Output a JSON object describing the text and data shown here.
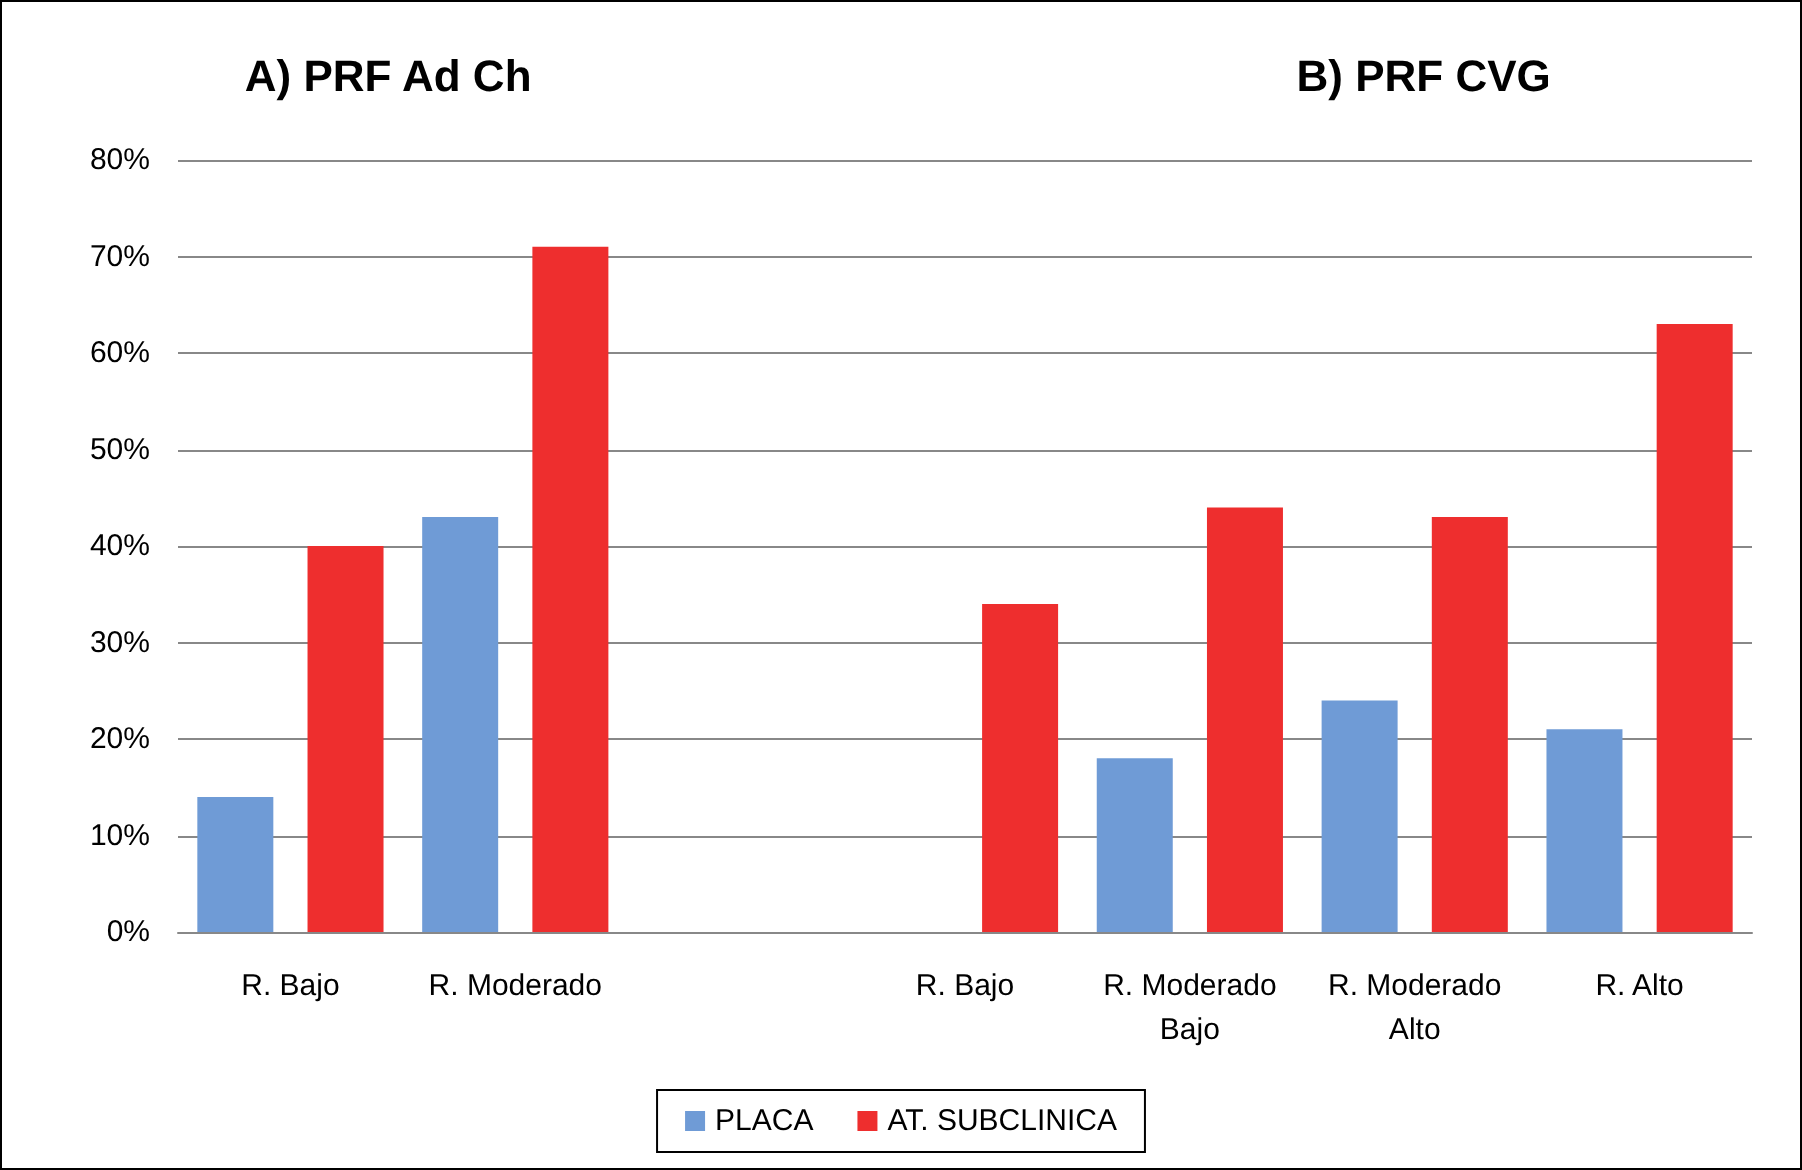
{
  "chart_data": {
    "type": "bar",
    "annotations": [
      "A) PRF Ad Ch",
      "B) PRF CVG"
    ],
    "categories": [
      "R. Bajo",
      "R. Moderado",
      null,
      "R. Bajo",
      "R. Moderado\nBajo",
      "R. Moderado\nAlto",
      "R. Alto"
    ],
    "series": [
      {
        "name": "PLACA",
        "color": "#6f9bd6",
        "values": [
          14,
          43,
          null,
          null,
          18,
          24,
          21
        ]
      },
      {
        "name": "AT. SUBCLINICA",
        "color": "#ee2e2e",
        "values": [
          40,
          71,
          null,
          34,
          44,
          43,
          63
        ]
      }
    ],
    "ylim": [
      0,
      80
    ],
    "yticks": [
      {
        "value": 0,
        "label": "0%"
      },
      {
        "value": 10,
        "label": "10%"
      },
      {
        "value": 20,
        "label": "20%"
      },
      {
        "value": 30,
        "label": "30%"
      },
      {
        "value": 40,
        "label": "40%"
      },
      {
        "value": 50,
        "label": "50%"
      },
      {
        "value": 60,
        "label": "60%"
      },
      {
        "value": 70,
        "label": "70%"
      },
      {
        "value": 80,
        "label": "80%"
      }
    ],
    "grid": "y",
    "legend": "bottom"
  }
}
